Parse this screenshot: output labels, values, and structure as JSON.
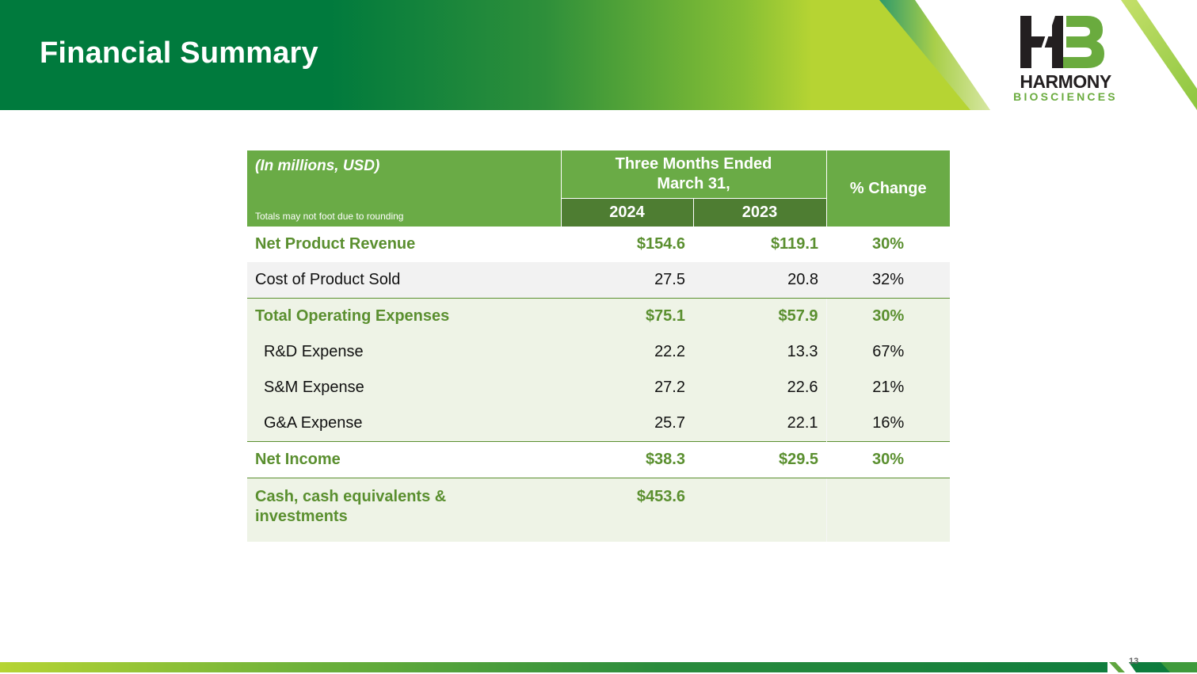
{
  "slide": {
    "title": "Financial Summary",
    "page_number": "13"
  },
  "logo": {
    "initials": "HB",
    "word": "HARMONY",
    "sub": "BIOSCIENCES"
  },
  "table": {
    "unit_label": "(In millions, USD)",
    "note": "Totals may not foot due to rounding",
    "period_header_line1": "Three Months Ended",
    "period_header_line2": "March 31,",
    "year_current": "2024",
    "year_prior": "2023",
    "change_header": "% Change",
    "rows": [
      {
        "label": "Net Product Revenue",
        "current": "$154.6",
        "prior": "$119.1",
        "change": "30%"
      },
      {
        "label": "Cost of Product Sold",
        "current": "27.5",
        "prior": "20.8",
        "change": "32%"
      },
      {
        "label": "Total Operating Expenses",
        "current": "$75.1",
        "prior": "$57.9",
        "change": "30%"
      },
      {
        "label": "R&D Expense",
        "current": "22.2",
        "prior": "13.3",
        "change": "67%"
      },
      {
        "label": "S&M Expense",
        "current": "27.2",
        "prior": "22.6",
        "change": "21%"
      },
      {
        "label": "G&A Expense",
        "current": "25.7",
        "prior": "22.1",
        "change": "16%"
      },
      {
        "label": "Net Income",
        "current": "$38.3",
        "prior": "$29.5",
        "change": "30%"
      },
      {
        "label": "Cash, cash equivalents & investments",
        "current": "$453.6",
        "prior": "",
        "change": ""
      }
    ]
  },
  "colors": {
    "brand_green": "#007a3d",
    "header_green": "#6aab46",
    "year_green": "#4e7d32",
    "accent_text": "#5a8f2f",
    "lime": "#b6d433"
  }
}
